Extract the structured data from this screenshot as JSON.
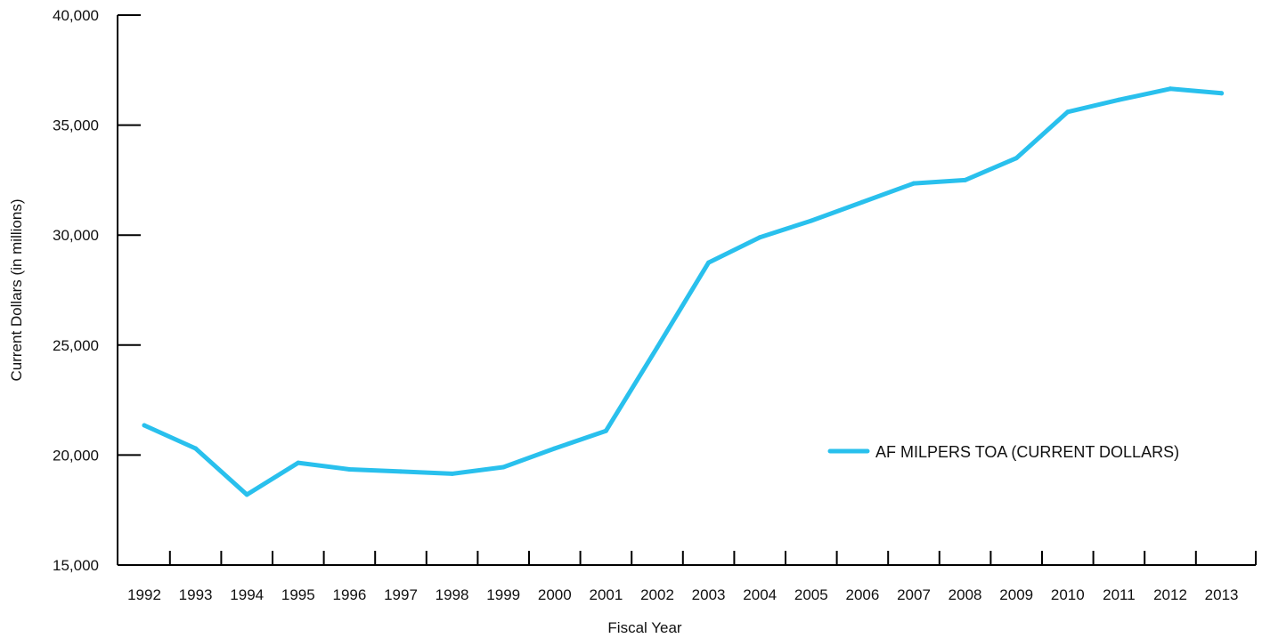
{
  "chart_data": {
    "type": "line",
    "title": "",
    "xlabel": "Fiscal Year",
    "ylabel": "Current Dollars (in millions)",
    "x": [
      "1992",
      "1993",
      "1994",
      "1995",
      "1996",
      "1997",
      "1998",
      "1999",
      "2000",
      "2001",
      "2002",
      "2003",
      "2004",
      "2005",
      "2006",
      "2007",
      "2008",
      "2009",
      "2010",
      "2011",
      "2012",
      "2013"
    ],
    "ylim": [
      15000,
      40000
    ],
    "yticks": [
      15000,
      20000,
      25000,
      30000,
      35000,
      40000
    ],
    "ytick_labels": [
      "15,000",
      "20,000",
      "25,000",
      "30,000",
      "35,000",
      "40,000"
    ],
    "grid": false,
    "legend_position": "center-right",
    "series": [
      {
        "name": "AF MILPERS TOA (CURRENT DOLLARS)",
        "color": "#29c0ed",
        "values": [
          21350,
          20300,
          18200,
          19650,
          19350,
          19250,
          19150,
          19450,
          20300,
          21100,
          24900,
          28750,
          29900,
          30650,
          31500,
          32350,
          32500,
          33500,
          35600,
          36150,
          36650,
          36450
        ]
      }
    ]
  }
}
